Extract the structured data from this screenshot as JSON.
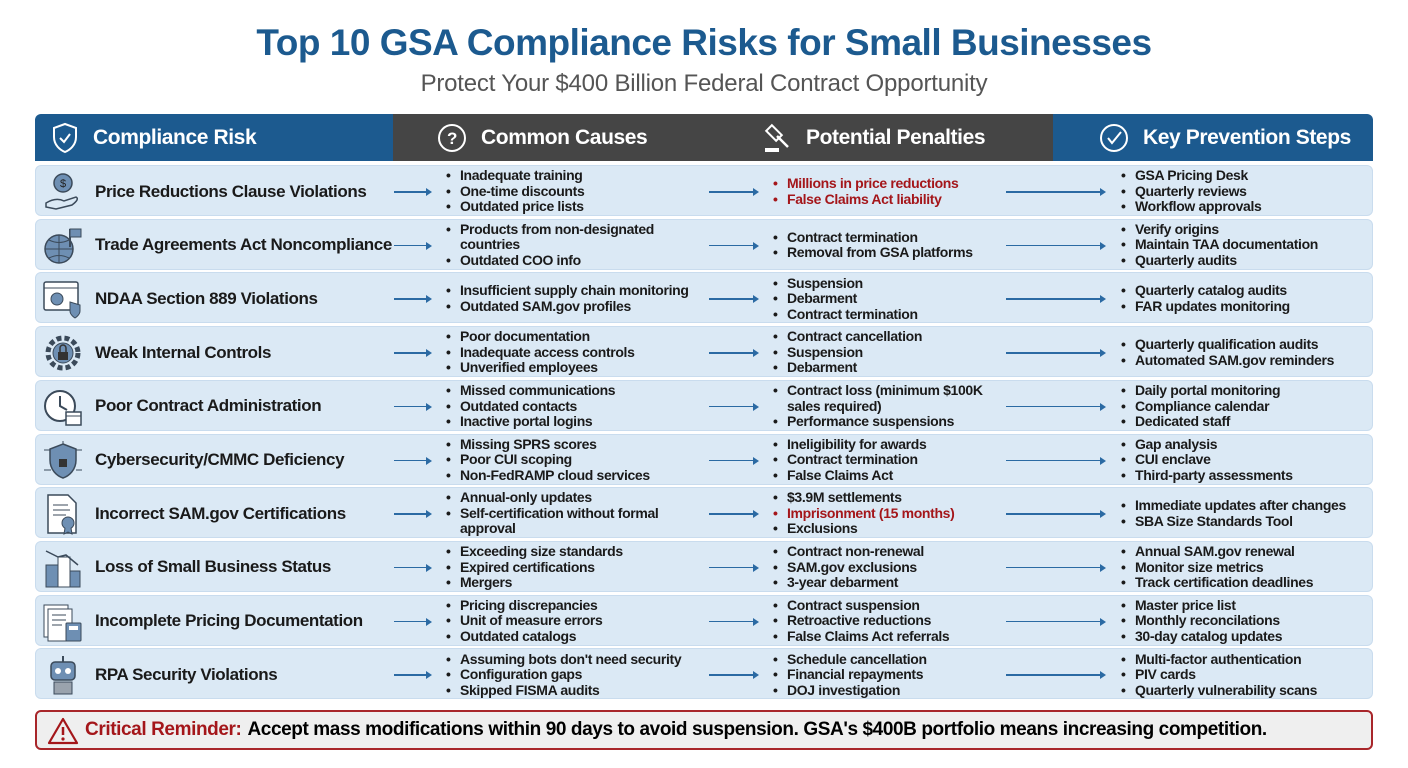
{
  "title": "Top 10 GSA Compliance Risks for Small Businesses",
  "subtitle": "Protect Your $400 Billion Federal Contract Opportunity",
  "colors": {
    "primary": "#1c5a8f",
    "header_dark": "#454545",
    "row_bg": "#dbe9f5",
    "alert": "#a4161a"
  },
  "headers": [
    {
      "label": "Compliance Risk",
      "icon": "shield-check-icon"
    },
    {
      "label": "Common Causes",
      "icon": "question-circle-icon"
    },
    {
      "label": "Potential Penalties",
      "icon": "gavel-icon"
    },
    {
      "label": "Key Prevention Steps",
      "icon": "check-circle-icon"
    }
  ],
  "rows": [
    {
      "risk": "Price Reductions Clause Violations",
      "icon": "hand-coin-icon",
      "causes": [
        "Inadequate training",
        "One-time discounts",
        "Outdated price lists"
      ],
      "penalties": [
        {
          "text": "Millions in price reductions",
          "alert": true
        },
        {
          "text": "False Claims Act liability",
          "alert": true
        }
      ],
      "steps": [
        "GSA Pricing Desk",
        "Quarterly reviews",
        "Workflow approvals"
      ]
    },
    {
      "risk": "Trade Agreements Act Noncompliance",
      "icon": "globe-flag-icon",
      "causes": [
        "Products from non-designated countries",
        "Outdated COO info"
      ],
      "penalties": [
        {
          "text": "Contract termination"
        },
        {
          "text": "Removal from GSA platforms"
        }
      ],
      "steps": [
        "Verify origins",
        "Maintain TAA documentation",
        "Quarterly audits"
      ]
    },
    {
      "risk": "NDAA Section 889 Violations",
      "icon": "browser-shield-icon",
      "causes": [
        "Insufficient supply chain monitoring",
        "Outdated SAM.gov profiles"
      ],
      "penalties": [
        {
          "text": "Suspension"
        },
        {
          "text": "Debarment"
        },
        {
          "text": "Contract termination"
        }
      ],
      "steps": [
        "Quarterly catalog audits",
        "FAR updates monitoring"
      ]
    },
    {
      "risk": "Weak Internal Controls",
      "icon": "gear-lock-icon",
      "causes": [
        "Poor documentation",
        "Inadequate access controls",
        "Unverified employees"
      ],
      "penalties": [
        {
          "text": "Contract cancellation"
        },
        {
          "text": "Suspension"
        },
        {
          "text": "Debarment"
        }
      ],
      "steps": [
        "Quarterly qualification audits",
        "Automated SAM.gov reminders"
      ]
    },
    {
      "risk": "Poor Contract Administration",
      "icon": "clock-calendar-icon",
      "causes": [
        "Missed communications",
        "Outdated contacts",
        "Inactive portal logins"
      ],
      "penalties": [
        {
          "text": "Contract loss (minimum $100K sales required)"
        },
        {
          "text": "Performance suspensions"
        }
      ],
      "steps": [
        "Daily portal monitoring",
        "Compliance calendar",
        "Dedicated staff"
      ]
    },
    {
      "risk": "Cybersecurity/CMMC Deficiency",
      "icon": "circuit-shield-icon",
      "causes": [
        "Missing SPRS scores",
        "Poor CUI scoping",
        "Non-FedRAMP cloud services"
      ],
      "penalties": [
        {
          "text": "Ineligibility for awards"
        },
        {
          "text": "Contract termination"
        },
        {
          "text": "False Claims Act"
        }
      ],
      "steps": [
        "Gap analysis",
        "CUI enclave",
        "Third-party assessments"
      ]
    },
    {
      "risk": "Incorrect SAM.gov Certifications",
      "icon": "certificate-icon",
      "causes": [
        "Annual-only updates",
        "Self-certification without formal approval"
      ],
      "penalties": [
        {
          "text": "$3.9M settlements"
        },
        {
          "text": "Imprisonment (15 months)",
          "alert": true
        },
        {
          "text": "Exclusions"
        }
      ],
      "steps": [
        "Immediate updates after changes",
        "SBA Size Standards Tool"
      ]
    },
    {
      "risk": "Loss of Small Business Status",
      "icon": "building-decline-icon",
      "causes": [
        "Exceeding size standards",
        "Expired certifications",
        "Mergers"
      ],
      "penalties": [
        {
          "text": "Contract non-renewal"
        },
        {
          "text": "SAM.gov exclusions"
        },
        {
          "text": "3-year debarment"
        }
      ],
      "steps": [
        "Annual SAM.gov renewal",
        "Monitor size metrics",
        "Track certification deadlines"
      ]
    },
    {
      "risk": "Incomplete Pricing Documentation",
      "icon": "documents-calculator-icon",
      "causes": [
        "Pricing discrepancies",
        "Unit of measure errors",
        "Outdated catalogs"
      ],
      "penalties": [
        {
          "text": "Contract suspension"
        },
        {
          "text": "Retroactive reductions"
        },
        {
          "text": "False Claims Act referrals"
        }
      ],
      "steps": [
        "Master price list",
        "Monthly reconcilations",
        "30-day catalog updates"
      ]
    },
    {
      "risk": "RPA Security Violations",
      "icon": "robot-icon",
      "causes": [
        "Assuming bots don't need security",
        "Configuration gaps",
        "Skipped FISMA audits"
      ],
      "penalties": [
        {
          "text": "Schedule cancellation"
        },
        {
          "text": "Financial repayments"
        },
        {
          "text": "DOJ investigation"
        }
      ],
      "steps": [
        "Multi-factor authentication",
        "PIV cards",
        "Quarterly vulnerability scans"
      ]
    }
  ],
  "banner": {
    "label": "Critical Reminder:",
    "text": "Accept mass modifications within 90 days to avoid suspension. GSA's $400B portfolio means increasing competition.",
    "icon": "warning-triangle-icon"
  }
}
